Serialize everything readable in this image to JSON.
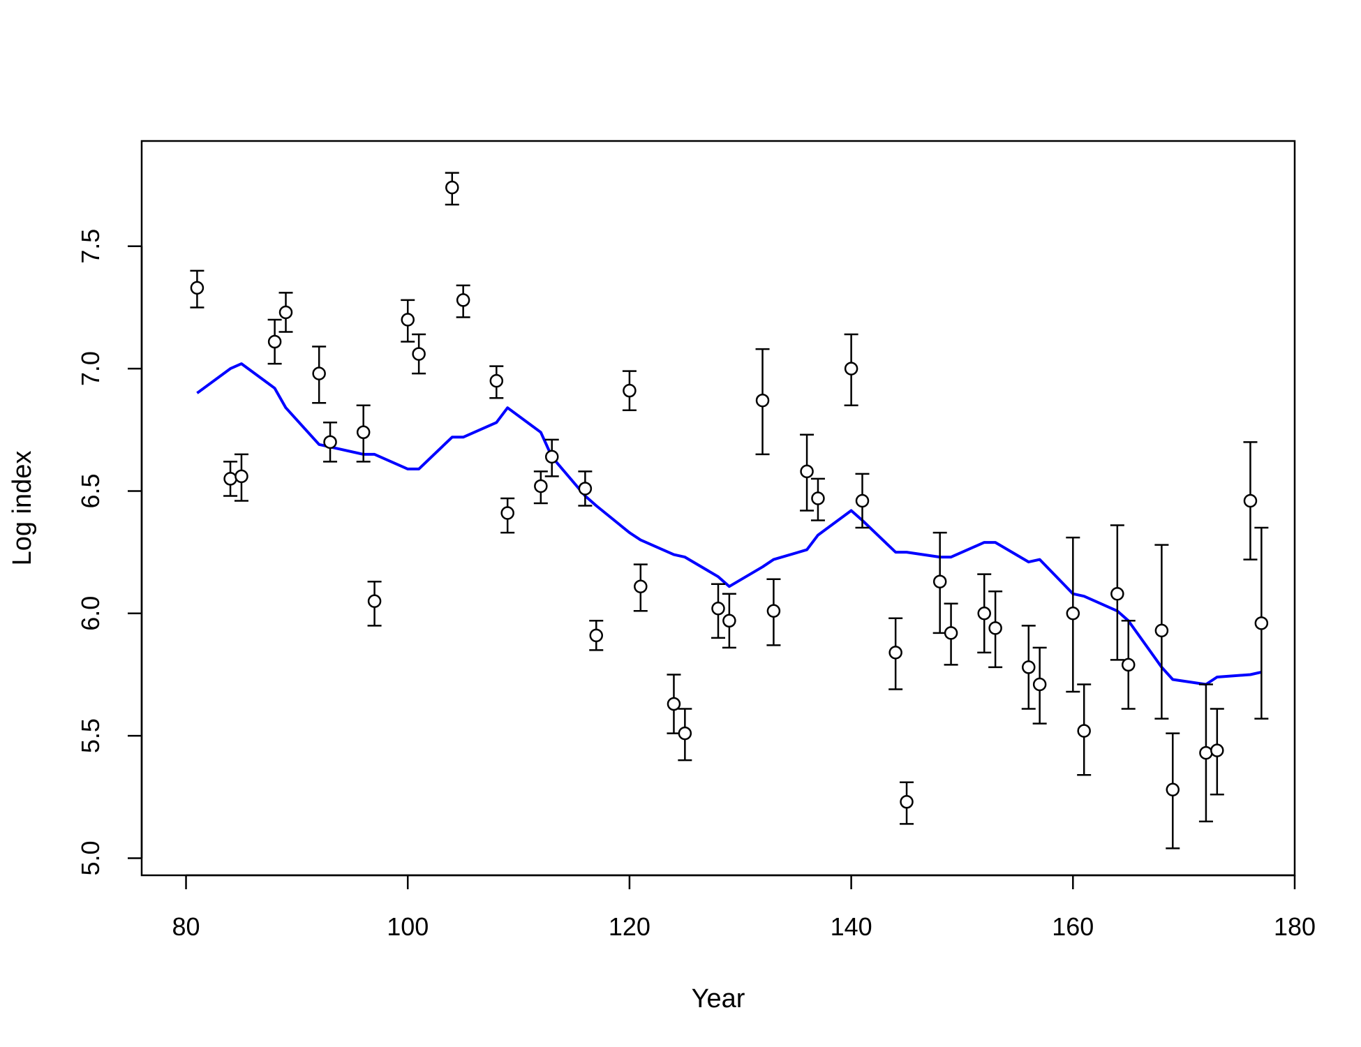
{
  "chart_data": {
    "type": "scatter",
    "title": "",
    "xlabel": "Year",
    "ylabel": "Log index",
    "xlim": [
      76,
      180
    ],
    "ylim": [
      4.93,
      7.93
    ],
    "xticks": [
      80,
      100,
      120,
      140,
      160,
      180
    ],
    "yticks": [
      5.0,
      5.5,
      6.0,
      6.5,
      7.0,
      7.5
    ],
    "grid": false,
    "legend": "none",
    "colors": {
      "fit_line": "#0000ff",
      "points": "#000000"
    },
    "series": [
      {
        "type": "scatter_errorbar",
        "x": [
          81,
          84,
          85,
          88,
          89,
          92,
          93,
          96,
          97,
          100,
          101,
          104,
          105,
          108,
          109,
          112,
          113,
          116,
          117,
          120,
          121,
          124,
          125,
          128,
          129,
          132,
          133,
          136,
          137,
          140,
          141,
          144,
          145,
          148,
          149,
          152,
          153,
          156,
          157,
          160,
          161,
          164,
          165,
          168,
          169,
          172,
          173,
          176,
          177
        ],
        "y": [
          7.33,
          6.55,
          6.56,
          7.11,
          7.23,
          6.98,
          6.7,
          6.74,
          6.05,
          7.2,
          7.06,
          7.74,
          7.28,
          6.95,
          6.41,
          6.52,
          6.64,
          6.51,
          5.91,
          6.91,
          6.11,
          5.63,
          5.51,
          6.02,
          5.97,
          6.87,
          6.01,
          6.58,
          6.47,
          7.0,
          6.46,
          5.84,
          5.23,
          6.13,
          5.92,
          6.0,
          5.94,
          5.78,
          5.71,
          6.0,
          5.52,
          6.08,
          5.79,
          5.93,
          5.28,
          5.43,
          5.44,
          6.46,
          5.96
        ],
        "lower": [
          7.25,
          6.48,
          6.46,
          7.02,
          7.15,
          6.86,
          6.62,
          6.62,
          5.95,
          7.11,
          6.98,
          7.67,
          7.21,
          6.88,
          6.33,
          6.45,
          6.56,
          6.44,
          5.85,
          6.83,
          6.01,
          5.51,
          5.4,
          5.9,
          5.86,
          6.65,
          5.87,
          6.42,
          6.38,
          6.85,
          6.35,
          5.69,
          5.14,
          5.92,
          5.79,
          5.84,
          5.78,
          5.61,
          5.55,
          5.68,
          5.34,
          5.81,
          5.61,
          5.57,
          5.04,
          5.15,
          5.26,
          6.22,
          5.57
        ],
        "upper": [
          7.4,
          6.62,
          6.65,
          7.2,
          7.31,
          7.09,
          6.78,
          6.85,
          6.13,
          7.28,
          7.14,
          7.8,
          7.34,
          7.01,
          6.47,
          6.58,
          6.71,
          6.58,
          5.97,
          6.99,
          6.2,
          5.75,
          5.61,
          6.12,
          6.08,
          7.08,
          6.14,
          6.73,
          6.55,
          7.14,
          6.57,
          5.98,
          5.31,
          6.33,
          6.04,
          6.16,
          6.09,
          5.95,
          5.86,
          6.31,
          5.71,
          6.36,
          5.97,
          6.28,
          5.51,
          5.71,
          5.61,
          6.7,
          6.35
        ]
      },
      {
        "type": "line",
        "x": [
          81,
          84,
          85,
          88,
          89,
          92,
          93,
          96,
          97,
          100,
          101,
          104,
          105,
          108,
          109,
          112,
          113,
          116,
          117,
          120,
          121,
          124,
          125,
          128,
          129,
          132,
          133,
          136,
          137,
          140,
          141,
          144,
          145,
          148,
          149,
          152,
          153,
          156,
          157,
          160,
          161,
          164,
          165,
          168,
          169,
          172,
          173,
          176,
          177
        ],
        "y": [
          6.9,
          7.0,
          7.02,
          6.92,
          6.84,
          6.69,
          6.68,
          6.65,
          6.65,
          6.59,
          6.59,
          6.72,
          6.72,
          6.78,
          6.84,
          6.74,
          6.64,
          6.48,
          6.44,
          6.33,
          6.3,
          6.24,
          6.23,
          6.15,
          6.11,
          6.19,
          6.22,
          6.26,
          6.32,
          6.42,
          6.38,
          6.25,
          6.25,
          6.23,
          6.23,
          6.29,
          6.29,
          6.21,
          6.22,
          6.08,
          6.07,
          6.01,
          5.97,
          5.78,
          5.73,
          5.71,
          5.74,
          5.75,
          5.76
        ]
      }
    ]
  }
}
